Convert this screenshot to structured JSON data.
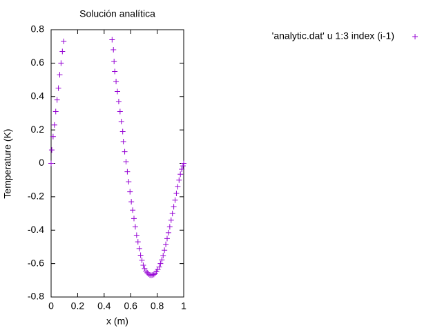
{
  "chart_data": {
    "type": "scatter",
    "title": "Solución analítica",
    "xlabel": "x (m)",
    "ylabel": "Temperature (K)",
    "xlim": [
      0,
      1
    ],
    "ylim": [
      -0.8,
      0.8
    ],
    "xticks": [
      0,
      0.2,
      0.4,
      0.6,
      0.8,
      1
    ],
    "yticks": [
      -0.8,
      -0.6,
      -0.4,
      -0.2,
      0,
      0.2,
      0.4,
      0.6,
      0.8
    ],
    "legend": "top-right",
    "series": [
      {
        "name": "'analytic.dat' u 1:3 index (i-1)",
        "color": "#9400d3",
        "x": [
          0,
          0.005,
          0.015,
          0.025,
          0.035,
          0.045,
          0.055,
          0.065,
          0.075,
          0.085,
          0.095,
          0.46,
          0.47,
          0.475,
          0.48,
          0.49,
          0.5,
          0.51,
          0.52,
          0.53,
          0.54,
          0.545,
          0.555,
          0.565,
          0.575,
          0.585,
          0.595,
          0.605,
          0.615,
          0.625,
          0.635,
          0.645,
          0.655,
          0.665,
          0.675,
          0.685,
          0.695,
          0.705,
          0.715,
          0.725,
          0.735,
          0.745,
          0.755,
          0.765,
          0.775,
          0.785,
          0.795,
          0.805,
          0.815,
          0.825,
          0.835,
          0.845,
          0.855,
          0.865,
          0.875,
          0.885,
          0.895,
          0.905,
          0.915,
          0.925,
          0.935,
          0.945,
          0.955,
          0.965,
          0.975,
          0.985,
          0.995,
          1.0
        ],
        "values": [
          0,
          0.08,
          0.16,
          0.23,
          0.31,
          0.38,
          0.45,
          0.53,
          0.6,
          0.67,
          0.73,
          0.74,
          0.68,
          0.61,
          0.55,
          0.49,
          0.43,
          0.37,
          0.31,
          0.25,
          0.19,
          0.13,
          0.07,
          0.01,
          -0.05,
          -0.11,
          -0.17,
          -0.23,
          -0.28,
          -0.33,
          -0.38,
          -0.43,
          -0.47,
          -0.51,
          -0.55,
          -0.58,
          -0.61,
          -0.63,
          -0.645,
          -0.655,
          -0.663,
          -0.668,
          -0.67,
          -0.668,
          -0.665,
          -0.658,
          -0.648,
          -0.635,
          -0.62,
          -0.6,
          -0.578,
          -0.552,
          -0.52,
          -0.485,
          -0.45,
          -0.415,
          -0.38,
          -0.34,
          -0.3,
          -0.26,
          -0.22,
          -0.18,
          -0.14,
          -0.1,
          -0.065,
          -0.035,
          -0.015,
          0
        ]
      }
    ]
  }
}
